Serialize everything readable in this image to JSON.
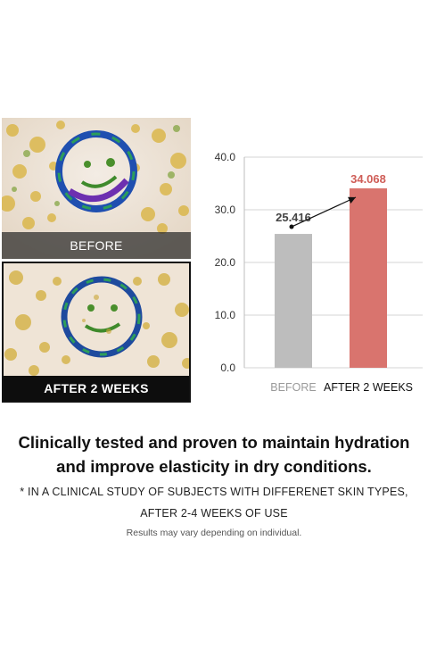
{
  "images": {
    "before_label": "BEFORE",
    "after_label": "AFTER 2 WEEKS"
  },
  "chart_data": {
    "type": "bar",
    "categories": [
      "BEFORE",
      "AFTER 2 WEEKS"
    ],
    "values": [
      25.416,
      34.068
    ],
    "value_labels": [
      "25.416",
      "34.068"
    ],
    "yticks": [
      "0.0",
      "10.0",
      "20.0",
      "30.0",
      "40.0"
    ],
    "ylim": [
      0,
      40
    ],
    "grid": true,
    "colors": [
      "#bdbdbd",
      "#d9746e"
    ],
    "label_colors": [
      "#444444",
      "#cf5d57"
    ],
    "category_label_colors": [
      "#9a9a9a",
      "#111111"
    ],
    "title": "",
    "xlabel": "",
    "ylabel": ""
  },
  "headline": {
    "line1": "Clinically tested and proven to maintain hydration",
    "line2": "and improve elasticity in dry conditions."
  },
  "note": {
    "line1": "* IN A CLINICAL STUDY OF SUBJECTS WITH DIFFERENET SKIN TYPES,",
    "line2": "AFTER 2-4 WEEKS OF USE"
  },
  "disclaimer": "Results may vary depending on individual."
}
